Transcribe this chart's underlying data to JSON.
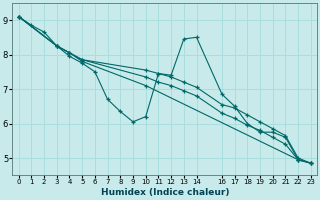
{
  "xlabel": "Humidex (Indice chaleur)",
  "xlim": [
    -0.5,
    23.5
  ],
  "ylim": [
    4.5,
    9.5
  ],
  "xticks": [
    0,
    1,
    2,
    3,
    4,
    5,
    6,
    7,
    8,
    9,
    10,
    11,
    12,
    13,
    14,
    16,
    17,
    18,
    19,
    20,
    21,
    22,
    23
  ],
  "yticks": [
    5,
    6,
    7,
    8,
    9
  ],
  "bg_color": "#c8eaea",
  "line_color": "#006868",
  "grid_color": "#aadddd",
  "series": [
    {
      "x": [
        0,
        1,
        2,
        3,
        4,
        5,
        6,
        7,
        8,
        9,
        10,
        11,
        12,
        13,
        14,
        16,
        17,
        18,
        19,
        20,
        21,
        22,
        23
      ],
      "y": [
        9.1,
        8.85,
        8.65,
        8.25,
        7.95,
        7.75,
        7.5,
        6.7,
        6.35,
        6.05,
        6.2,
        7.45,
        7.4,
        8.45,
        8.5,
        6.85,
        6.5,
        6.0,
        5.75,
        5.75,
        5.6,
        4.95,
        4.85
      ]
    },
    {
      "x": [
        0,
        3,
        4,
        5,
        10,
        11,
        12,
        13,
        14,
        16,
        17,
        18,
        19,
        20,
        21,
        22,
        23
      ],
      "y": [
        9.1,
        8.25,
        8.05,
        7.85,
        7.55,
        7.45,
        7.35,
        7.2,
        7.05,
        6.55,
        6.45,
        6.25,
        6.05,
        5.85,
        5.65,
        5.0,
        4.85
      ]
    },
    {
      "x": [
        0,
        3,
        4,
        5,
        10,
        11,
        12,
        13,
        14,
        16,
        17,
        18,
        19,
        20,
        21,
        22,
        23
      ],
      "y": [
        9.1,
        8.25,
        8.05,
        7.85,
        7.35,
        7.2,
        7.1,
        6.95,
        6.8,
        6.3,
        6.15,
        5.95,
        5.8,
        5.6,
        5.4,
        4.95,
        4.85
      ]
    },
    {
      "x": [
        0,
        3,
        4,
        5,
        10,
        22,
        23
      ],
      "y": [
        9.1,
        8.25,
        8.05,
        7.8,
        7.1,
        4.95,
        4.85
      ]
    }
  ]
}
